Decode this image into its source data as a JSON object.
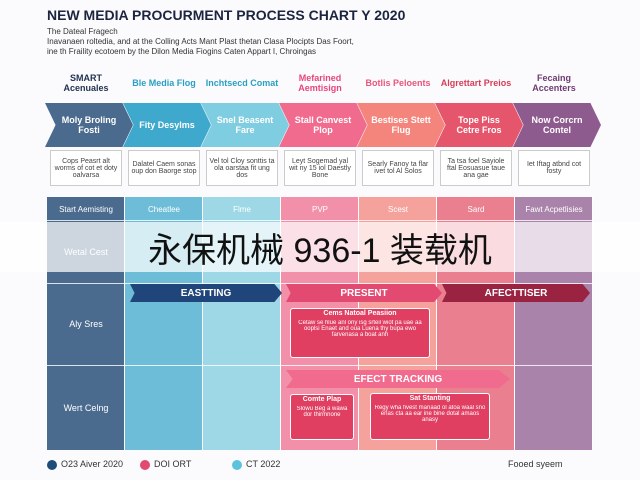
{
  "title": "NEW MEDIA PROCURMENT PROCESS CHART Y 2020",
  "subtitle": [
    "The Dateal Fragech",
    "Inavanaen roltedia, and at the Colling Acts Mant Plast thetan Clasa Plocipts Das Foort,",
    "ine th Fraility ecotoem by the Dilon Media Fiogins Caten Appart I, Chroingas"
  ],
  "columns": [
    {
      "header": "SMART Acenuales",
      "step": "Moly Broling Fosti",
      "desc": "Cops Peasrt alt worms of cot et doty oalvarsa",
      "color": "#4b6b8e",
      "head_color": "#1f3150"
    },
    {
      "header": "Ble Media Flog",
      "step": "Fity Desylms",
      "desc": "Dalatel Caem sonas oup don Baorge stop",
      "color": "#3ea9cc",
      "head_color": "#2a9fc4"
    },
    {
      "header": "Inchtsecd Comat",
      "step": "Snel Beasent Fare",
      "desc": "Vel tol Cloy sonttis ta ola oarstaa fit ung dos",
      "color": "#7fcde0",
      "head_color": "#2a9fc4"
    },
    {
      "header": "Mefarined Aemtisign",
      "step": "Stall Canvest Plop",
      "desc": "Leyt Sogemad yal wit ny 15 iol Daestly Bone",
      "color": "#f06b8e",
      "head_color": "#e8457a"
    },
    {
      "header": "Botlis Peloents",
      "step": "Bestises Stett Flug",
      "desc": "Searly Fanoy ta flar ivet tol Al Solos",
      "color": "#f4857c",
      "head_color": "#e8557a"
    },
    {
      "header": "Algrettart Preios",
      "step": "Tope Piss Cetre Fros",
      "desc": "Ta tsa foel Sayiole ftal Eosuasue taue ana gae",
      "color": "#e5566c",
      "head_color": "#d63d58"
    },
    {
      "header": "Fecaing Accenters",
      "step": "Now Corcrn Contel",
      "desc": "Iet Iftag atbnd cot fosty",
      "color": "#8e5b8e",
      "head_color": "#6e3c70"
    }
  ],
  "row_labels": [
    "Wetal Cest",
    "Aly Sres",
    "Wert Celng"
  ],
  "first_row": [
    "Start Aemisting",
    "Cheatlee",
    "Flme",
    "PVP",
    "Scest",
    "Sard",
    "Fawt Acpetlisies"
  ],
  "bands": [
    "EASTTING",
    "PRESENT",
    "AFECTTISER",
    "EFECT TRACKING"
  ],
  "boxes": [
    {
      "title": "Cems Natoal Peasiion",
      "body": "Cetaw se hlue anl ony isg srteil wiot pa uae aa ooplsi Enaet and oua Luena thy bupa ewo farvenasa a boat anh"
    },
    {
      "title": "Comte Plap",
      "body": "Slowu Beg a wawa dor thirmnone"
    },
    {
      "title": "Sat Stanting",
      "body": "Regy wha fivest manaad ol atoa waal sno erlas cta aa ear ine bine dotal amaos anasy"
    }
  ],
  "legend": [
    "O23 Aiver 2020",
    "DOI ORT",
    "CT 2022"
  ],
  "footer": "Fooed syeem",
  "watermark": "永保机械 936-1 装载机"
}
